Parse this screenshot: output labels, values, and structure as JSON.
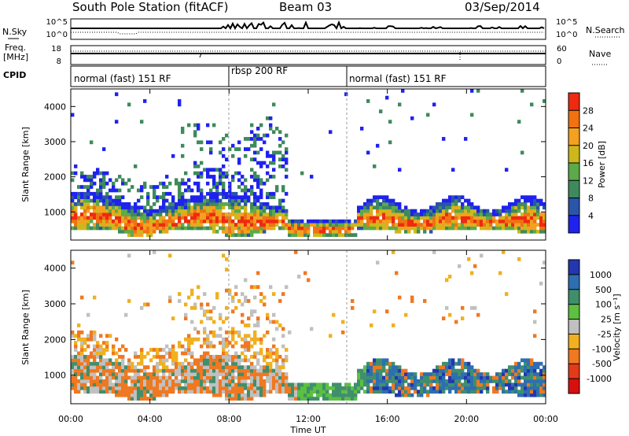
{
  "header": {
    "station": "South Pole Station (fitACF)",
    "beam": "Beam 03",
    "date": "03/Sep/2014"
  },
  "chart_data": [
    {
      "type": "line",
      "panel": "noise",
      "left_label": "N.Sky",
      "right_label": "N.Search",
      "left_ticks": [
        "10^5",
        "10^0"
      ],
      "right_ticks": [
        "10^5",
        "10^0"
      ]
    },
    {
      "type": "line",
      "panel": "frequency",
      "left_label_top": "Freq.",
      "left_label_bottom": "[MHz]",
      "right_label": "Nave",
      "left_ticks": [
        "18",
        "8"
      ],
      "right_ticks": [
        "60",
        "0"
      ]
    },
    {
      "type": "table",
      "panel": "cpid",
      "label": "CPID",
      "segments": [
        {
          "name": "normal (fast) 151 RF",
          "start_hour": 0,
          "end_hour": 8
        },
        {
          "name": "rbsp 200 RF",
          "start_hour": 8,
          "end_hour": 14
        },
        {
          "name": "normal (fast) 151 RF",
          "start_hour": 14,
          "end_hour": 24
        }
      ]
    },
    {
      "type": "heatmap",
      "panel": "power",
      "ylabel": "Slant Range [km]",
      "yticks": [
        "1000",
        "2000",
        "3000",
        "4000"
      ],
      "ylim": [
        200,
        4500
      ],
      "colorbar_label": "Power [dB]",
      "colorbar_ticks": [
        "4",
        "8",
        "12",
        "16",
        "20",
        "24",
        "28"
      ],
      "colorbar_colors": [
        "#1f22ee",
        "#2a55a8",
        "#3f8a5c",
        "#5caa4a",
        "#cdb81c",
        "#f4a020",
        "#f07212",
        "#ee2a10"
      ]
    },
    {
      "type": "heatmap",
      "panel": "velocity",
      "ylabel": "Slant Range [km]",
      "yticks": [
        "1000",
        "2000",
        "3000",
        "4000"
      ],
      "ylim": [
        200,
        4500
      ],
      "colorbar_label": "Velocity [m s⁻¹]",
      "colorbar_ticks": [
        "1000",
        "500",
        "100",
        "25",
        "-25",
        "-100",
        "-500",
        "-1000"
      ],
      "colorbar_colors": [
        "#2436b0",
        "#2d6fb0",
        "#3f8f6c",
        "#5cc040",
        "#c0c0c0",
        "#f0b020",
        "#f07820",
        "#e43a1a",
        "#d80f0f"
      ]
    }
  ],
  "x_axis": {
    "label": "Time UT",
    "ticks": [
      "00:00",
      "04:00",
      "08:00",
      "12:00",
      "16:00",
      "20:00",
      "00:00"
    ]
  }
}
